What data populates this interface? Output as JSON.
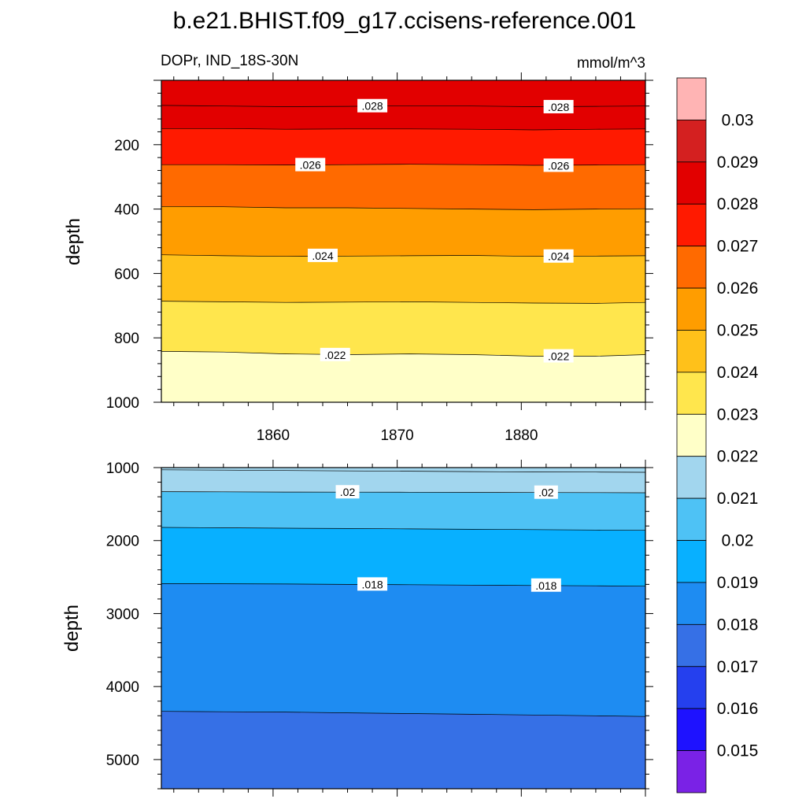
{
  "title": "b.e21.BHIST.f09_g17.ccisens-reference.001",
  "subtitle_left": "DOPr, IND_18S-30N",
  "subtitle_right": "mmol/m^3",
  "chart_data": [
    {
      "type": "heatmap",
      "panel": "upper",
      "ylabel": "depth",
      "xlabel": "",
      "xlim": [
        1851,
        1890
      ],
      "ylim": [
        1000,
        0
      ],
      "xticks": [
        "1860",
        "1870",
        "1880"
      ],
      "yticks": [
        "200",
        "400",
        "600",
        "800",
        "1000"
      ],
      "x": [
        1851,
        1856,
        1861,
        1866,
        1871,
        1876,
        1881,
        1886,
        1890
      ],
      "contours": [
        {
          "level": 0.028,
          "color": "#e20000",
          "y": [
            78,
            80,
            82,
            81,
            79,
            80,
            82,
            81,
            80
          ]
        },
        {
          "level": 0.027,
          "color": "#ff1a00",
          "y": [
            150,
            150,
            152,
            151,
            151,
            152,
            154,
            152,
            151
          ]
        },
        {
          "level": 0.026,
          "color": "#ff6a00",
          "y": [
            262,
            262,
            263,
            262,
            261,
            262,
            264,
            263,
            262
          ]
        },
        {
          "level": 0.025,
          "color": "#ff9d00",
          "y": [
            392,
            393,
            396,
            396,
            398,
            400,
            402,
            400,
            399
          ]
        },
        {
          "level": 0.024,
          "color": "#ffc11a",
          "y": [
            542,
            545,
            547,
            546,
            545,
            544,
            547,
            546,
            545
          ]
        },
        {
          "level": 0.023,
          "color": "#ffe64d",
          "y": [
            686,
            688,
            690,
            689,
            688,
            690,
            692,
            693,
            690
          ]
        },
        {
          "level": 0.022,
          "color": "#ffffc8",
          "y": [
            842,
            844,
            850,
            852,
            850,
            852,
            857,
            857,
            852
          ]
        },
        {
          "level": 0.021,
          "color": "#a2d6ee",
          "y": [
            1000,
            1000,
            1000,
            1000,
            1000,
            1000,
            1000,
            1000,
            1000
          ]
        }
      ],
      "top_fill": "#e20000",
      "line_labels": [
        {
          "text": ".028",
          "x": 1868,
          "y": 80
        },
        {
          "text": ".028",
          "x": 1883,
          "y": 83
        },
        {
          "text": ".026",
          "x": 1863,
          "y": 263
        },
        {
          "text": ".026",
          "x": 1883,
          "y": 265
        },
        {
          "text": ".024",
          "x": 1864,
          "y": 545
        },
        {
          "text": ".024",
          "x": 1883,
          "y": 547
        },
        {
          "text": ".022",
          "x": 1865,
          "y": 853
        },
        {
          "text": ".022",
          "x": 1883,
          "y": 857
        }
      ]
    },
    {
      "type": "heatmap",
      "panel": "lower",
      "ylabel": "depth",
      "xlabel": "",
      "xlim": [
        1851,
        1890
      ],
      "ylim": [
        5400,
        1000
      ],
      "yticks": [
        "1000",
        "2000",
        "3000",
        "4000",
        "5000"
      ],
      "x": [
        1851,
        1856,
        1861,
        1866,
        1871,
        1876,
        1881,
        1886,
        1890
      ],
      "contours": [
        {
          "level": 0.021,
          "color": "#a2d6ee",
          "y": [
            1030,
            1035,
            1040,
            1045,
            1050,
            1055,
            1060,
            1062,
            1065
          ]
        },
        {
          "level": 0.02,
          "color": "#4ec2f5",
          "y": [
            1330,
            1332,
            1335,
            1337,
            1338,
            1340,
            1342,
            1343,
            1345
          ]
        },
        {
          "level": 0.019,
          "color": "#08b0ff",
          "y": [
            1820,
            1825,
            1830,
            1835,
            1840,
            1845,
            1850,
            1855,
            1860
          ]
        },
        {
          "level": 0.018,
          "color": "#1e8cf2",
          "y": [
            2590,
            2592,
            2595,
            2600,
            2605,
            2610,
            2615,
            2620,
            2625
          ]
        },
        {
          "level": 0.017,
          "color": "#3670e6",
          "y": [
            4340,
            4345,
            4350,
            4360,
            4370,
            4380,
            4390,
            4400,
            4410
          ]
        },
        {
          "level": 0.016,
          "color": "#2540ee",
          "y": [
            5400,
            5400,
            5400,
            5400,
            5400,
            5400,
            5400,
            5400,
            5400
          ]
        }
      ],
      "top_fill": "#a2d6ee",
      "line_labels": [
        {
          "text": ".02",
          "x": 1866,
          "y": 1337
        },
        {
          "text": ".02",
          "x": 1882,
          "y": 1342
        },
        {
          "text": ".018",
          "x": 1868,
          "y": 2600
        },
        {
          "text": ".018",
          "x": 1882,
          "y": 2615
        }
      ]
    }
  ],
  "colorbar": {
    "labels": [
      "0.03",
      "0.029",
      "0.028",
      "0.027",
      "0.026",
      "0.025",
      "0.024",
      "0.023",
      "0.022",
      "0.021",
      "0.02",
      "0.019",
      "0.018",
      "0.017",
      "0.016",
      "0.015"
    ],
    "colors": [
      "#ffb4b4",
      "#d42020",
      "#e20000",
      "#ff1a00",
      "#ff6a00",
      "#ff9d00",
      "#ffc11a",
      "#ffe64d",
      "#ffffc8",
      "#a2d6ee",
      "#4ec2f5",
      "#08b0ff",
      "#1e8cf2",
      "#3670e6",
      "#2540ee",
      "#1e12ff",
      "#7a22e6"
    ]
  }
}
